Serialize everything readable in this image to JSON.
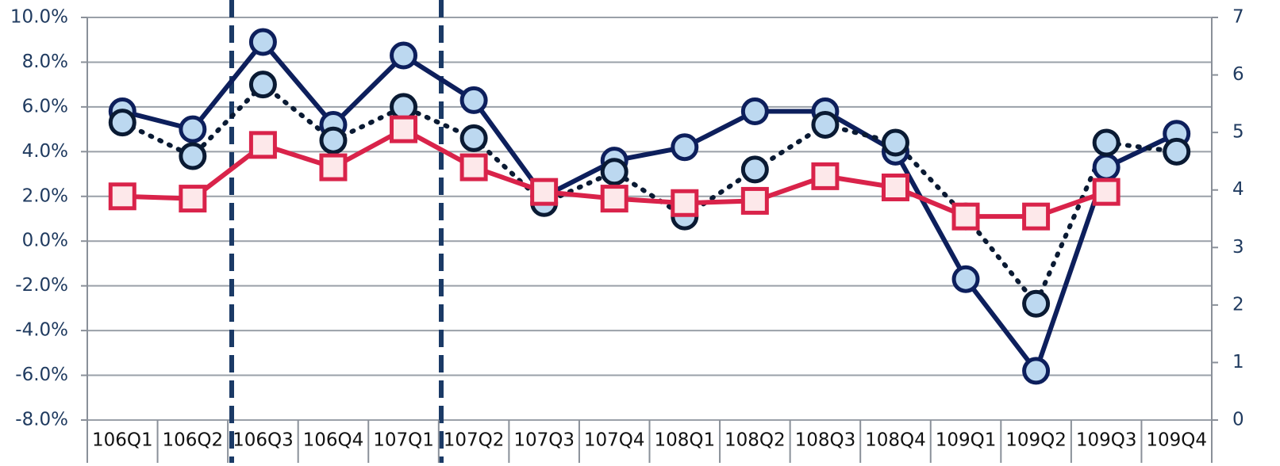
{
  "chart_data": {
    "type": "line",
    "categories": [
      "106Q1",
      "106Q2",
      "106Q3",
      "106Q4",
      "107Q1",
      "107Q2",
      "107Q3",
      "107Q4",
      "108Q1",
      "108Q2",
      "108Q3",
      "108Q4",
      "109Q1",
      "109Q2",
      "109Q3",
      "109Q4"
    ],
    "series": [
      {
        "color": "#0d1f5c",
        "style": "solid",
        "marker": "circle",
        "marker_fill": "#bcd8f0",
        "values": [
          5.8,
          5.0,
          8.9,
          5.2,
          8.3,
          6.3,
          2.0,
          3.6,
          4.2,
          5.8,
          5.8,
          4.0,
          -1.7,
          -5.8,
          3.3,
          4.8
        ]
      },
      {
        "color": "#0a1a33",
        "style": "dotted",
        "marker": "circle",
        "marker_fill": "#bcd8f0",
        "values": [
          5.3,
          3.8,
          7.0,
          4.5,
          6.0,
          4.6,
          1.7,
          3.1,
          1.1,
          3.2,
          5.2,
          4.4,
          1.1,
          -2.8,
          4.4,
          4.0
        ]
      },
      {
        "color": "#d9234a",
        "style": "solid",
        "marker": "square",
        "marker_fill": "#fde8ea",
        "values": [
          2.0,
          1.9,
          4.3,
          3.3,
          5.0,
          3.3,
          2.2,
          1.9,
          1.7,
          1.8,
          2.9,
          2.4,
          1.1,
          1.1,
          2.2,
          null
        ]
      }
    ],
    "ylim": [
      -8,
      10
    ],
    "yticks": [
      {
        "value": -8,
        "label": "-8.0%"
      },
      {
        "value": -6,
        "label": "-6.0%"
      },
      {
        "value": -4,
        "label": "-4.0%"
      },
      {
        "value": -2,
        "label": "-2.0%"
      },
      {
        "value": 0,
        "label": "0.0%"
      },
      {
        "value": 2,
        "label": "2.0%"
      },
      {
        "value": 4,
        "label": "4.0%"
      },
      {
        "value": 6,
        "label": "6.0%"
      },
      {
        "value": 8,
        "label": "8.0%"
      },
      {
        "value": 10,
        "label": "10.0%"
      }
    ],
    "y2lim": [
      0,
      7
    ],
    "y2ticks": [
      0,
      1,
      2,
      3,
      4,
      5,
      6,
      7
    ],
    "grid": true
  }
}
